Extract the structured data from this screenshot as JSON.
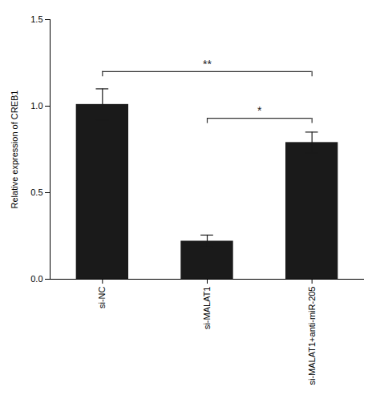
{
  "chart_data": {
    "type": "bar",
    "categories": [
      "si-NC",
      "si-MALAT1",
      "si-MALAT1+anti-miR-205"
    ],
    "values": [
      1.01,
      0.22,
      0.79
    ],
    "errors": [
      0.09,
      0.035,
      0.06
    ],
    "color": "#1a1a1a",
    "ylabel": "Relative expression of CREB1",
    "ylim": [
      0,
      1.5
    ],
    "yticks": [
      {
        "value": 0,
        "label": "0.0"
      },
      0.5,
      {
        "value": 1,
        "label": "1.0"
      },
      1.5
    ],
    "grid": false,
    "annotations": [
      {
        "text": "**",
        "x1": "si-NC",
        "x2": "si-MALAT1+anti-miR-205",
        "y": 1.2,
        "label_y": 1.22
      },
      {
        "text": "*",
        "x1": "si-MALAT1",
        "x2": "si-MALAT1+anti-miR-205",
        "y": 0.93,
        "label_y": 0.95
      }
    ]
  }
}
